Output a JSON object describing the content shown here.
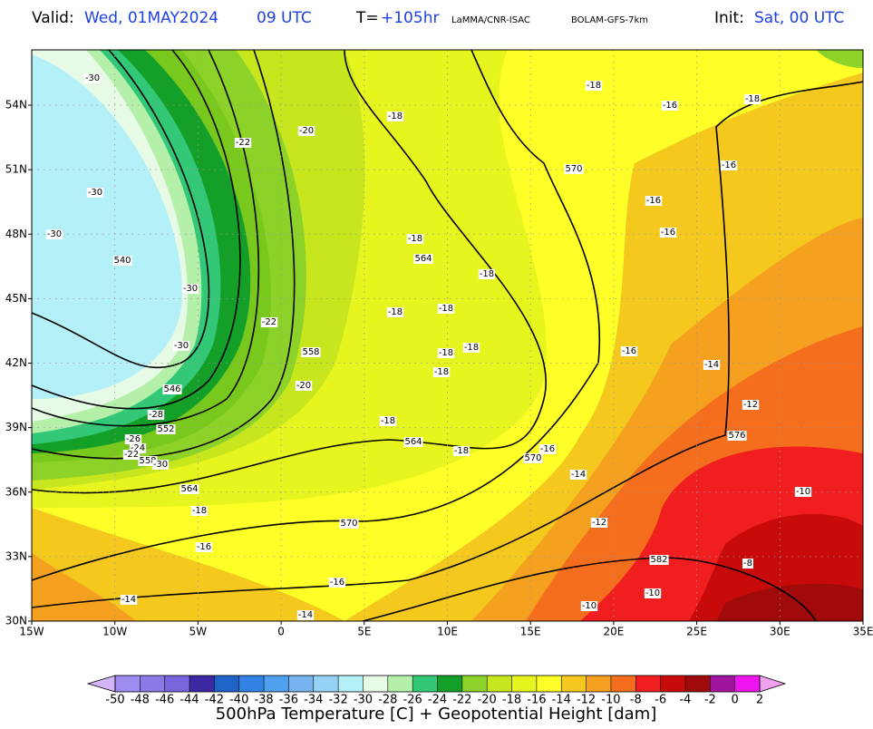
{
  "header": {
    "valid_label": "Valid:",
    "valid_date": "Wed, 01MAY2024",
    "valid_time": "09 UTC",
    "lead_label": "T=",
    "lead_time": "+105hr",
    "source": "LaMMA/CNR-ISAC",
    "model": "BOLAM-GFS-7km",
    "init_label": "Init:",
    "init_time": "Sat, 00 UTC"
  },
  "map": {
    "lat_labels": [
      "54N",
      "51N",
      "48N",
      "45N",
      "42N",
      "39N",
      "36N",
      "33N",
      "30N"
    ],
    "lon_labels": [
      "15W",
      "10W",
      "5W",
      "0",
      "5E",
      "10E",
      "15E",
      "20E",
      "25E",
      "30E",
      "35E"
    ],
    "contour_labels": [
      "-30",
      "-22",
      "-20",
      "-18",
      "-30",
      "-30",
      "540",
      "-30",
      "-22",
      "-30",
      "558",
      "-20",
      "546",
      "-28",
      "552",
      "-26",
      "-24",
      "-22",
      "558",
      "-30",
      "564",
      "-18",
      "-16",
      "-14",
      "-14",
      "-16",
      "570",
      "-18",
      "564",
      "-18",
      "570",
      "-16",
      "-14",
      "-12",
      "-10",
      "-10",
      "582",
      "-8",
      "-10",
      "576",
      "-12",
      "-14",
      "-16",
      "-18",
      "564",
      "-18",
      "-18",
      "-18",
      "-18",
      "-18",
      "-18",
      "570",
      "-18",
      "-16",
      "-18",
      "-16",
      "-16",
      "-16"
    ]
  },
  "colorbar": {
    "ticks": [
      -50,
      -48,
      -46,
      -44,
      -42,
      -40,
      -38,
      -36,
      -34,
      -32,
      -30,
      -28,
      -26,
      -24,
      -22,
      -20,
      -18,
      -16,
      -14,
      -12,
      -10,
      -8,
      -6,
      -4,
      -2,
      0,
      2
    ],
    "colors": [
      "#a08cf0",
      "#8c78e6",
      "#7864dc",
      "#3c28a0",
      "#1e64c8",
      "#3282e6",
      "#50a0f0",
      "#78b4f0",
      "#96d2f5",
      "#b4f0f8",
      "#e6fae6",
      "#b4f0aa",
      "#32c878",
      "#14a028",
      "#8cd228",
      "#c8e61e",
      "#e6f51e",
      "#ffff28",
      "#f5c81e",
      "#f5a01e",
      "#f56e1e",
      "#f01e1e",
      "#c80a0a",
      "#a00a0a",
      "#a014a0",
      "#f014f0"
    ],
    "under_color": "#d2b4fa",
    "over_color": "#f0a0f0",
    "title": "500hPa Temperature [C] + Geopotential Height [dam]"
  }
}
